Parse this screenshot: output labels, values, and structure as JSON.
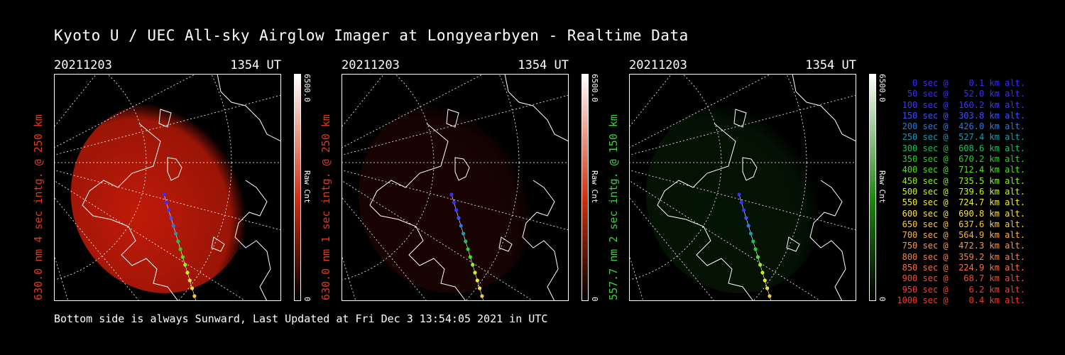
{
  "title": "Kyoto U / UEC All-sky Airglow Imager at Longyearbyen - Realtime Data",
  "footer": "Bottom side is always Sunward, Last Updated at Fri Dec  3 13:54:05 2021 in UTC",
  "panels": [
    {
      "date": "20211203",
      "time": "1354 UT",
      "label": "630.0 nm 4 sec intg. @ 250 km",
      "label_color": "#e03a1e",
      "cbar_max": "6500.0",
      "cbar_unit": "Raw Cnt",
      "cbar_min": "0",
      "glow": "#c01a08",
      "glow_strength": 1.0
    },
    {
      "date": "20211203",
      "time": "1354 UT",
      "label": "630.0 nm 1 sec intg. @ 250 km",
      "label_color": "#e03a1e",
      "cbar_max": "6500.0",
      "cbar_unit": "Raw Cnt",
      "cbar_min": "0",
      "glow": "#4a0a05",
      "glow_strength": 0.35
    },
    {
      "date": "20211203",
      "time": "1354 UT",
      "label": "557.7 nm 2 sec intg. @ 150 km",
      "label_color": "#3fcf3f",
      "cbar_max": "6500.0",
      "cbar_unit": "Raw Cnt",
      "cbar_min": "0",
      "glow": "#0c3a0a",
      "glow_strength": 0.35
    }
  ],
  "legend": [
    {
      "text": "   0 sec @    0.1 km alt.",
      "color": "#3a2cff"
    },
    {
      "text": "  50 sec @   52.0 km alt.",
      "color": "#3a2cff"
    },
    {
      "text": " 100 sec @  160.2 km alt.",
      "color": "#3a36ff"
    },
    {
      "text": " 150 sec @  303.8 km alt.",
      "color": "#3a50ff"
    },
    {
      "text": " 200 sec @  426.0 km alt.",
      "color": "#2a78e0"
    },
    {
      "text": " 250 sec @  527.4 km alt.",
      "color": "#1a9ab0"
    },
    {
      "text": " 300 sec @  608.6 km alt.",
      "color": "#1ac060"
    },
    {
      "text": " 350 sec @  670.2 km alt.",
      "color": "#2ad020"
    },
    {
      "text": " 400 sec @  712.4 km alt.",
      "color": "#50e020"
    },
    {
      "text": " 450 sec @  735.5 km alt.",
      "color": "#90f020"
    },
    {
      "text": " 500 sec @  739.6 km alt.",
      "color": "#c8f020"
    },
    {
      "text": " 550 sec @  724.7 km alt.",
      "color": "#f0f020"
    },
    {
      "text": " 600 sec @  690.8 km alt.",
      "color": "#f8e040"
    },
    {
      "text": " 650 sec @  637.6 km alt.",
      "color": "#f8c840"
    },
    {
      "text": " 700 sec @  564.9 km alt.",
      "color": "#f8b040"
    },
    {
      "text": " 750 sec @  472.3 km alt.",
      "color": "#f89840"
    },
    {
      "text": " 800 sec @  359.2 km alt.",
      "color": "#f88040"
    },
    {
      "text": " 850 sec @  224.9 km alt.",
      "color": "#f87040"
    },
    {
      "text": " 900 sec @   68.7 km alt.",
      "color": "#f05030"
    },
    {
      "text": " 950 sec @    6.2 km alt.",
      "color": "#f04030"
    },
    {
      "text": "1000 sec @    0.4 km alt.",
      "color": "#f03a28"
    }
  ]
}
